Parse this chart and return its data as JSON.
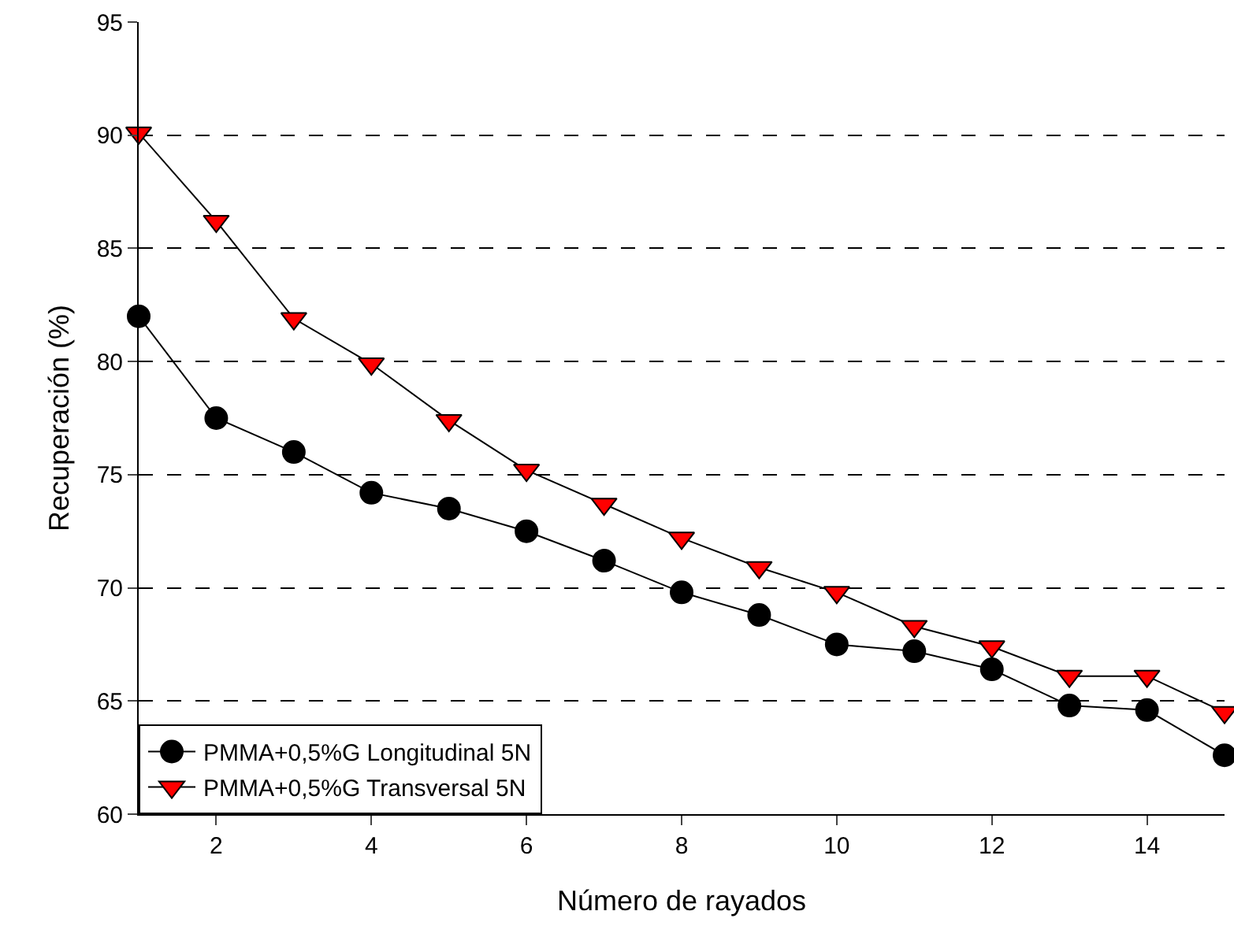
{
  "chart_data": {
    "type": "line",
    "xlabel": "Número de rayados",
    "ylabel": "Recuperación (%)",
    "x": [
      1,
      2,
      3,
      4,
      5,
      6,
      7,
      8,
      9,
      10,
      11,
      12,
      13,
      14,
      15
    ],
    "series": [
      {
        "name": "PMMA+0,5%G Longitudinal 5N",
        "color": "#000000",
        "marker": "circle",
        "values": [
          82.0,
          77.5,
          76.0,
          74.2,
          73.5,
          72.5,
          71.2,
          69.8,
          68.8,
          67.5,
          67.2,
          66.4,
          64.8,
          64.6,
          62.6
        ]
      },
      {
        "name": "PMMA+0,5%G Transversal 5N",
        "color": "#ff0000",
        "marker": "triangle-down",
        "values": [
          90.1,
          86.2,
          81.9,
          79.9,
          77.4,
          75.2,
          73.7,
          72.2,
          70.9,
          69.8,
          68.3,
          67.4,
          66.1,
          66.1,
          64.5
        ]
      }
    ],
    "xlim": [
      1,
      15
    ],
    "xticks": [
      2,
      4,
      6,
      8,
      10,
      12,
      14
    ],
    "ylim": [
      60,
      95
    ],
    "yticks": [
      60,
      65,
      70,
      75,
      80,
      85,
      90,
      95
    ],
    "grid": "y",
    "line_style": "solid",
    "legend": "bottom left"
  }
}
